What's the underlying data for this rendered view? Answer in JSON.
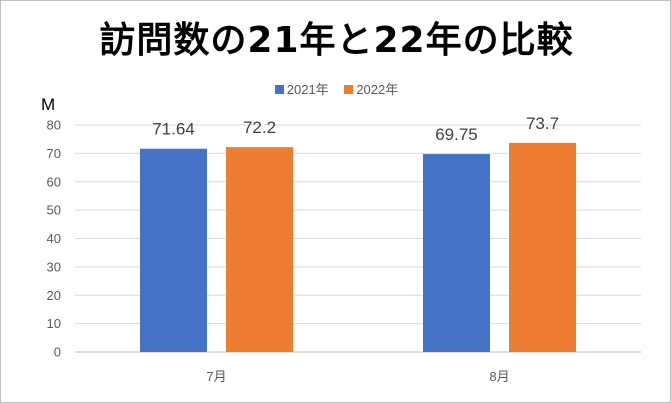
{
  "chart_data": {
    "type": "bar",
    "title": "訪問数の21年と22年の比較",
    "unit_label": "M",
    "categories": [
      "7月",
      "8月"
    ],
    "series": [
      {
        "name": "2021年",
        "color": "#4472c4",
        "values": [
          71.64,
          69.75
        ]
      },
      {
        "name": "2022年",
        "color": "#ed7d31",
        "values": [
          72.2,
          73.7
        ]
      }
    ],
    "ylim": [
      0,
      80
    ],
    "yticks": [
      0,
      10,
      20,
      30,
      40,
      50,
      60,
      70,
      80
    ],
    "grid": true,
    "legend_position": "top"
  }
}
